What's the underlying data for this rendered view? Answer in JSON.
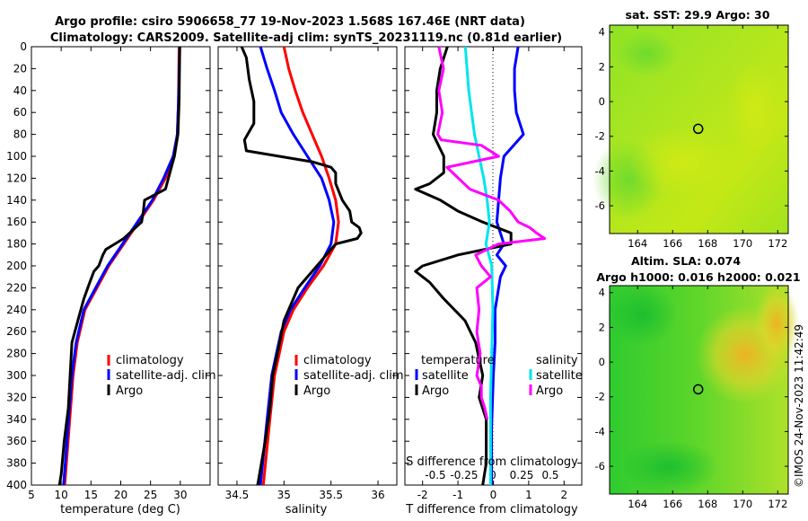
{
  "header": {
    "title_line1": "Argo profile: csiro 5906658_77 19-Nov-2023 1.568S 167.46E (NRT data)",
    "title_line2": "Climatology: CARS2009. Satellite-adj clim: synTS_20231119.nc (0.81d earlier)"
  },
  "colors": {
    "argo": "#000000",
    "climatology": "#ff0000",
    "satellite": "#0000ff",
    "sat_salinity": "#00e5ee",
    "argo_salinity": "#ff00ff"
  },
  "chart_data": [
    {
      "type": "line",
      "name": "temperature",
      "xlabel": "temperature (deg C)",
      "xlim": [
        5,
        35
      ],
      "ylim": [
        400,
        0
      ],
      "x_ticks": [
        "5",
        "10",
        "15",
        "20",
        "25",
        "30"
      ],
      "y_ticks": [
        "0",
        "20",
        "40",
        "60",
        "80",
        "100",
        "120",
        "140",
        "160",
        "180",
        "200",
        "220",
        "240",
        "260",
        "280",
        "300",
        "320",
        "340",
        "360",
        "380",
        "400"
      ],
      "legend": [
        "climatology",
        "satellite-adj. clim",
        "Argo"
      ],
      "series": [
        {
          "name": "climatology",
          "color": "#ff0000",
          "depth": [
            0,
            50,
            80,
            100,
            120,
            140,
            160,
            180,
            200,
            220,
            240,
            270,
            300,
            350,
            400
          ],
          "values": [
            29.8,
            29.7,
            29.5,
            29.0,
            27.5,
            25.5,
            23.0,
            20.5,
            18.0,
            16.0,
            14.0,
            12.7,
            12.0,
            11.3,
            10.6
          ]
        },
        {
          "name": "satellite-adj. clim",
          "color": "#0000ff",
          "depth": [
            0,
            50,
            80,
            100,
            120,
            140,
            160,
            180,
            200,
            220,
            240,
            270,
            300,
            350,
            400
          ],
          "values": [
            29.9,
            29.7,
            29.5,
            28.8,
            27.2,
            25.3,
            22.8,
            20.3,
            17.8,
            15.8,
            13.8,
            12.5,
            11.8,
            11.1,
            10.4
          ]
        },
        {
          "name": "Argo",
          "color": "#000000",
          "depth": [
            0,
            50,
            80,
            100,
            120,
            130,
            140,
            150,
            160,
            175,
            180,
            185,
            190,
            200,
            205,
            215,
            230,
            250,
            270,
            300,
            330,
            360,
            390,
            400
          ],
          "values": [
            29.9,
            29.8,
            29.6,
            29.0,
            28.0,
            27.5,
            24.0,
            23.8,
            23.5,
            20.5,
            19.0,
            17.5,
            17.0,
            16.3,
            15.5,
            14.8,
            13.8,
            12.8,
            11.8,
            11.5,
            11.2,
            10.5,
            10.0,
            9.7
          ]
        }
      ]
    },
    {
      "type": "line",
      "name": "salinity",
      "xlabel": "salinity",
      "xlim": [
        34.3,
        36.2
      ],
      "ylim": [
        400,
        0
      ],
      "x_ticks": [
        "34.5",
        "35",
        "35.5",
        "36"
      ],
      "legend": [
        "climatology",
        "satellite-adj. clim",
        "Argo"
      ],
      "series": [
        {
          "name": "climatology",
          "color": "#ff0000",
          "depth": [
            0,
            20,
            40,
            60,
            80,
            100,
            120,
            140,
            160,
            180,
            200,
            220,
            240,
            260,
            280,
            300,
            340,
            400
          ],
          "values": [
            35.0,
            35.05,
            35.12,
            35.2,
            35.3,
            35.4,
            35.48,
            35.55,
            35.58,
            35.55,
            35.42,
            35.25,
            35.1,
            35.0,
            34.95,
            34.9,
            34.85,
            34.78
          ]
        },
        {
          "name": "satellite-adj. clim",
          "color": "#0000ff",
          "depth": [
            0,
            20,
            40,
            60,
            80,
            100,
            120,
            140,
            160,
            180,
            200,
            220,
            240,
            260,
            280,
            300,
            340,
            400
          ],
          "values": [
            34.75,
            34.82,
            34.9,
            34.97,
            35.1,
            35.25,
            35.4,
            35.48,
            35.53,
            35.5,
            35.38,
            35.22,
            35.07,
            34.97,
            34.92,
            34.87,
            34.82,
            34.75
          ]
        },
        {
          "name": "Argo",
          "color": "#000000",
          "depth": [
            0,
            10,
            30,
            50,
            70,
            85,
            95,
            100,
            105,
            110,
            115,
            125,
            140,
            150,
            160,
            165,
            170,
            175,
            180,
            190,
            200,
            220,
            250,
            280,
            300,
            330,
            360,
            400
          ],
          "values": [
            34.55,
            34.6,
            34.63,
            34.68,
            34.68,
            34.58,
            34.6,
            34.95,
            35.3,
            35.5,
            35.55,
            35.55,
            35.62,
            35.7,
            35.72,
            35.8,
            35.82,
            35.78,
            35.55,
            35.45,
            35.35,
            35.15,
            35.0,
            34.93,
            34.88,
            34.85,
            34.8,
            34.72
          ]
        }
      ]
    },
    {
      "type": "line",
      "name": "differences",
      "xlabel": "T difference from climatology",
      "xlabel_top": "S difference from climatology",
      "xlim": [
        -2.5,
        2.5
      ],
      "ylim": [
        400,
        0
      ],
      "x_ticks": [
        "-2",
        "-1",
        "0",
        "1",
        "2"
      ],
      "s_ticks": [
        "-0.5",
        "-0.25",
        "0",
        "0.25",
        "0.5"
      ],
      "legend_left_header": "temperature",
      "legend_right_header": "salinity",
      "legend": [
        "satellite",
        "Argo",
        "satellite",
        "Argo"
      ],
      "series": [
        {
          "name": "T satellite",
          "color": "#0000ff",
          "depth": [
            0,
            20,
            40,
            60,
            80,
            100,
            120,
            140,
            160,
            180,
            190,
            200,
            210,
            240,
            270,
            300,
            350,
            400
          ],
          "values": [
            0.7,
            0.6,
            0.6,
            0.65,
            0.85,
            0.3,
            0.2,
            0.15,
            0.1,
            0.3,
            0.1,
            0.35,
            0.2,
            0.05,
            0.05,
            0,
            -0.05,
            -0.05
          ]
        },
        {
          "name": "T Argo",
          "color": "#000000",
          "depth": [
            0,
            20,
            40,
            60,
            80,
            100,
            115,
            125,
            130,
            140,
            150,
            160,
            170,
            180,
            190,
            200,
            205,
            215,
            230,
            250,
            270,
            300,
            320,
            340,
            360,
            380,
            400
          ],
          "values": [
            -1.3,
            -1.5,
            -1.6,
            -1.6,
            -1.7,
            -1.4,
            -1.4,
            -1.8,
            -2.2,
            -1.5,
            -1.0,
            -0.3,
            0.5,
            0.5,
            -1.0,
            -2.0,
            -2.2,
            -1.8,
            -1.4,
            -0.8,
            -0.5,
            -0.3,
            -0.4,
            -0.2,
            -0.2,
            -0.2,
            -0.3
          ]
        },
        {
          "name": "S satellite",
          "color": "#00e5ee",
          "depth": [
            0,
            40,
            80,
            100,
            120,
            140,
            160,
            180,
            200,
            240,
            280,
            320,
            360,
            400
          ],
          "values": [
            -0.24,
            -0.21,
            -0.16,
            -0.12,
            -0.08,
            -0.05,
            -0.03,
            -0.06,
            -0.01,
            0.0,
            -0.01,
            -0.02,
            -0.02,
            -0.02
          ]
        },
        {
          "name": "S Argo",
          "color": "#ff00ff",
          "depth": [
            0,
            20,
            40,
            60,
            80,
            85,
            90,
            100,
            110,
            130,
            140,
            150,
            160,
            165,
            170,
            175,
            180,
            190,
            200,
            210,
            220,
            240,
            260,
            280,
            300,
            310,
            320,
            330,
            340
          ],
          "values": [
            -0.47,
            -0.43,
            -0.47,
            -0.44,
            -0.48,
            -0.45,
            -0.1,
            0.05,
            -0.4,
            -0.2,
            0.05,
            0.15,
            0.22,
            0.32,
            0.38,
            0.45,
            0.05,
            -0.15,
            -0.1,
            -0.02,
            -0.14,
            -0.12,
            -0.14,
            -0.11,
            -0.14,
            -0.1,
            -0.1,
            -0.07,
            -0.05
          ]
        }
      ]
    },
    {
      "type": "heatmap",
      "name": "sst_map",
      "title": "sat. SST: 29.9 Argo: 30",
      "x_ticks": [
        "164",
        "166",
        "168",
        "170",
        "172"
      ],
      "y_ticks": [
        "4",
        "2",
        "0",
        "-2",
        "-4",
        "-6"
      ],
      "xlim": [
        162.4,
        172.6
      ],
      "ylim": [
        -7.6,
        4.4
      ],
      "argo_position": [
        167.46,
        -1.568
      ]
    },
    {
      "type": "heatmap",
      "name": "sla_map",
      "title_line1": "Altim. SLA: 0.074",
      "title_line2": "Argo h1000: 0.016 h2000: 0.021",
      "x_ticks": [
        "164",
        "166",
        "168",
        "170",
        "172"
      ],
      "y_ticks": [
        "4",
        "2",
        "0",
        "-2",
        "-4",
        "-6"
      ],
      "xlim": [
        162.4,
        172.6
      ],
      "ylim": [
        -7.6,
        4.4
      ],
      "argo_position": [
        167.46,
        -1.568
      ]
    }
  ],
  "footer": {
    "credit": "©IMOS 24-Nov-2023 11:42:49"
  }
}
